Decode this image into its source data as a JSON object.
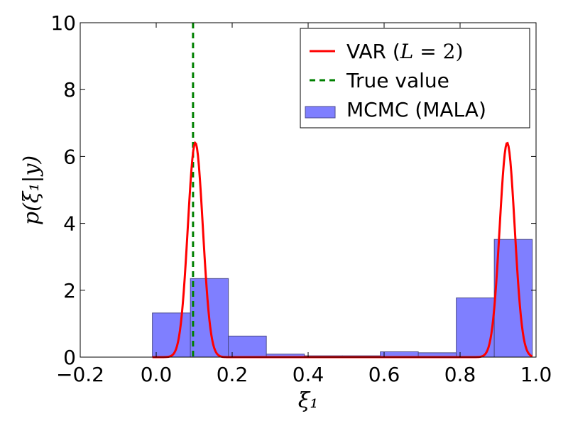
{
  "chart_data": {
    "type": "histogram-with-curve",
    "xlabel": "ξ₁",
    "ylabel": "p(ξ₁|y)",
    "xlim": [
      -0.2,
      1.0
    ],
    "ylim": [
      0,
      10
    ],
    "x_ticks": [
      -0.2,
      0.0,
      0.2,
      0.4,
      0.6,
      0.8,
      1.0
    ],
    "x_tick_labels": [
      "−0.2",
      "0.0",
      "0.2",
      "0.4",
      "0.6",
      "0.8",
      "1.0"
    ],
    "y_ticks": [
      0,
      2,
      4,
      6,
      8,
      10
    ],
    "y_tick_labels": [
      "0",
      "2",
      "4",
      "6",
      "8",
      "10"
    ],
    "histogram": {
      "name": "MCMC (MALA)",
      "color": "#7f7fff",
      "edge_color": "#4b4b8c",
      "bins": [
        {
          "x0": -0.01,
          "x1": 0.09,
          "value": 1.32
        },
        {
          "x0": 0.09,
          "x1": 0.19,
          "value": 2.35
        },
        {
          "x0": 0.19,
          "x1": 0.29,
          "value": 0.63
        },
        {
          "x0": 0.29,
          "x1": 0.39,
          "value": 0.09
        },
        {
          "x0": 0.39,
          "x1": 0.49,
          "value": 0.04
        },
        {
          "x0": 0.49,
          "x1": 0.59,
          "value": 0.04
        },
        {
          "x0": 0.59,
          "x1": 0.69,
          "value": 0.16
        },
        {
          "x0": 0.69,
          "x1": 0.79,
          "value": 0.13
        },
        {
          "x0": 0.79,
          "x1": 0.89,
          "value": 1.77
        },
        {
          "x0": 0.89,
          "x1": 0.99,
          "value": 3.52
        }
      ]
    },
    "curve": {
      "name": "VAR (L=2)",
      "color": "#ff0000",
      "components": [
        {
          "mean": 0.103,
          "sd": 0.0198,
          "weight": 0.318
        },
        {
          "mean": 0.924,
          "sd": 0.0198,
          "weight": 0.318
        }
      ],
      "x_range": [
        -0.01,
        0.99
      ]
    },
    "true_value": {
      "name": "True value",
      "x": 0.097,
      "color": "#008000"
    },
    "legend": {
      "position": "top-right",
      "entries": [
        {
          "label_main": "VAR (",
          "label_italic": "L",
          "label_rest": " = 2)",
          "kind": "line",
          "color": "#ff0000"
        },
        {
          "label": "True value",
          "kind": "dashed",
          "color": "#008000"
        },
        {
          "label": "MCMC (MALA)",
          "kind": "patch",
          "color": "#7f7fff"
        }
      ]
    }
  }
}
